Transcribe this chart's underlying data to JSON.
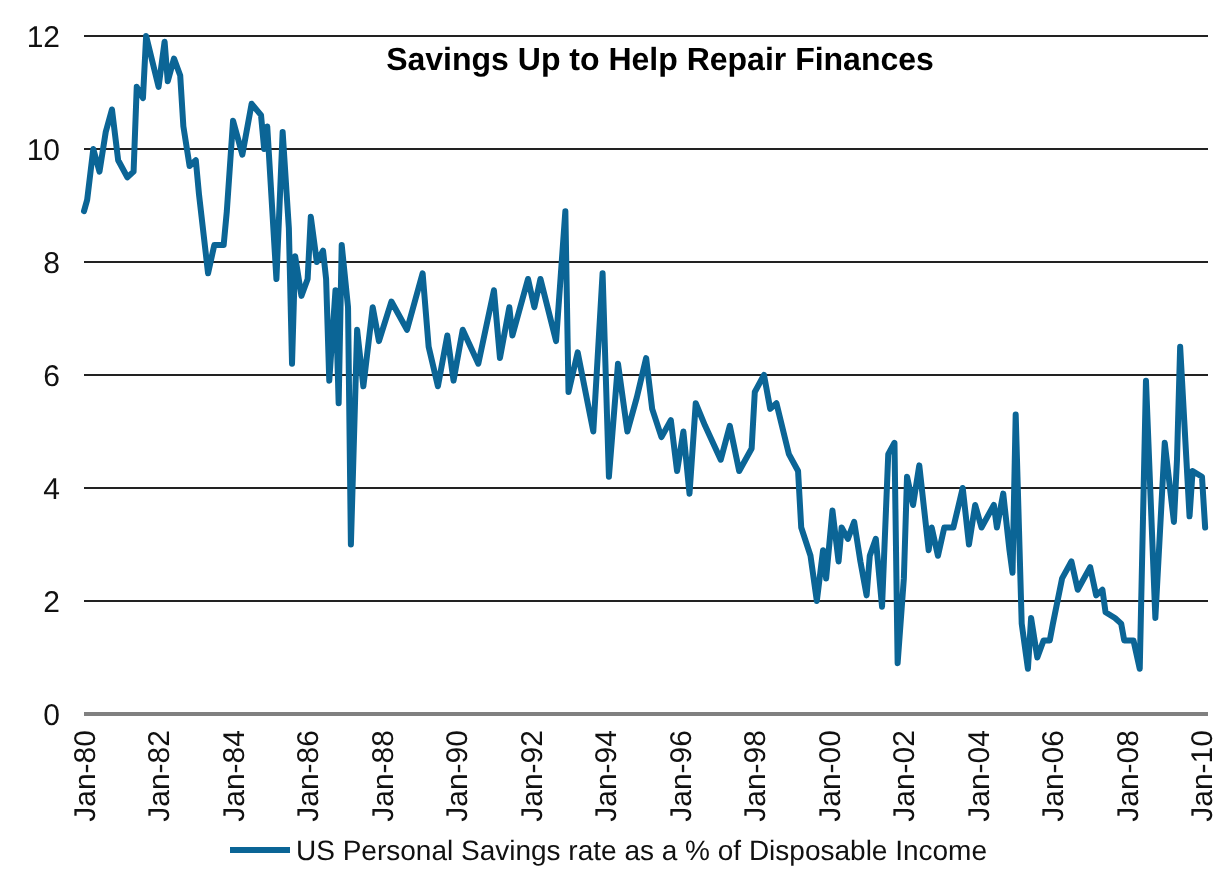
{
  "chart_data": {
    "type": "line",
    "title": "Savings Up to Help Repair Finances",
    "x": [
      "1980-01",
      "1980-02",
      "1980-04",
      "1980-06",
      "1980-08",
      "1980-10",
      "1980-12",
      "1981-03",
      "1981-05",
      "1981-06",
      "1981-08",
      "1981-09",
      "1982-01",
      "1982-03",
      "1982-04",
      "1982-06",
      "1982-08",
      "1982-09",
      "1982-11",
      "1983-01",
      "1983-02",
      "1983-05",
      "1983-07",
      "1983-10",
      "1983-11",
      "1984-01",
      "1984-04",
      "1984-07",
      "1984-10",
      "1984-11",
      "1984-12",
      "1985-03",
      "1985-05",
      "1985-07",
      "1985-08",
      "1985-09",
      "1985-11",
      "1986-01",
      "1986-02",
      "1986-04",
      "1986-06",
      "1986-07",
      "1986-08",
      "1986-10",
      "1986-11",
      "1986-12",
      "1987-02",
      "1987-03",
      "1987-05",
      "1987-07",
      "1987-10",
      "1987-12",
      "1988-04",
      "1988-09",
      "1989-02",
      "1989-04",
      "1989-07",
      "1989-10",
      "1989-12",
      "1990-03",
      "1990-08",
      "1991-01",
      "1991-03",
      "1991-06",
      "1991-07",
      "1991-12",
      "1992-02",
      "1992-04",
      "1992-09",
      "1992-12",
      "1993-01",
      "1993-04",
      "1993-09",
      "1993-12",
      "1994-02",
      "1994-05",
      "1994-08",
      "1994-11",
      "1995-02",
      "1995-04",
      "1995-07",
      "1995-10",
      "1995-12",
      "1996-02",
      "1996-04",
      "1996-06",
      "1996-09",
      "1997-02",
      "1997-05",
      "1997-08",
      "1997-12",
      "1998-01",
      "1998-04",
      "1998-06",
      "1998-08",
      "1998-12",
      "1999-03",
      "1999-04",
      "1999-07",
      "1999-09",
      "1999-11",
      "1999-12",
      "2000-02",
      "2000-04",
      "2000-05",
      "2000-07",
      "2000-09",
      "2000-11",
      "2001-01",
      "2001-02",
      "2001-04",
      "2001-06",
      "2001-08",
      "2001-10",
      "2001-11",
      "2002-01",
      "2002-02",
      "2002-04",
      "2002-06",
      "2002-09",
      "2002-10",
      "2002-12",
      "2003-02",
      "2003-05",
      "2003-08",
      "2003-10",
      "2003-12",
      "2004-02",
      "2004-06",
      "2004-07",
      "2004-09",
      "2004-11",
      "2004-12",
      "2005-01",
      "2005-03",
      "2005-05",
      "2005-06",
      "2005-08",
      "2005-10",
      "2005-12",
      "2006-01",
      "2006-04",
      "2006-07",
      "2006-09",
      "2007-01",
      "2007-03",
      "2007-05",
      "2007-06",
      "2007-09",
      "2007-11",
      "2007-12",
      "2008-03",
      "2008-05",
      "2008-07",
      "2008-10",
      "2009-01",
      "2009-04",
      "2009-05",
      "2009-06",
      "2009-09",
      "2009-10",
      "2010-01",
      "2010-02"
    ],
    "series": [
      {
        "name": "US Personal Savings rate as a % of Disposable Income",
        "color": "#0b6596",
        "values": [
          8.9,
          9.1,
          10.0,
          9.6,
          10.3,
          10.7,
          9.8,
          9.5,
          9.6,
          11.1,
          10.9,
          12.0,
          11.1,
          11.9,
          11.2,
          11.6,
          11.3,
          10.4,
          9.7,
          9.8,
          9.2,
          7.8,
          8.3,
          8.3,
          8.9,
          10.5,
          9.9,
          10.8,
          10.6,
          10.0,
          10.4,
          7.7,
          10.3,
          8.6,
          6.2,
          8.1,
          7.4,
          7.7,
          8.8,
          8.0,
          8.2,
          7.7,
          5.9,
          7.5,
          5.5,
          8.3,
          7.2,
          3.0,
          6.8,
          5.8,
          7.2,
          6.6,
          7.3,
          6.8,
          7.8,
          6.5,
          5.8,
          6.7,
          5.9,
          6.8,
          6.2,
          7.5,
          6.3,
          7.2,
          6.7,
          7.7,
          7.2,
          7.7,
          6.6,
          8.9,
          5.7,
          6.4,
          5.0,
          7.8,
          4.2,
          6.2,
          5.0,
          5.6,
          6.3,
          5.4,
          4.9,
          5.2,
          4.3,
          5.0,
          3.9,
          5.5,
          5.1,
          4.5,
          5.1,
          4.3,
          4.7,
          5.7,
          6.0,
          5.4,
          5.5,
          4.6,
          4.3,
          3.3,
          2.8,
          2.0,
          2.9,
          2.4,
          3.6,
          2.7,
          3.3,
          3.1,
          3.4,
          2.7,
          2.1,
          2.8,
          3.1,
          1.9,
          4.6,
          4.8,
          0.9,
          2.4,
          4.2,
          3.7,
          4.4,
          2.9,
          3.3,
          2.8,
          3.3,
          3.3,
          4.0,
          3.0,
          3.7,
          3.3,
          3.7,
          3.3,
          3.9,
          2.9,
          2.5,
          5.3,
          1.6,
          0.8,
          1.7,
          1.0,
          1.3,
          1.3,
          1.6,
          2.4,
          2.7,
          2.2,
          2.6,
          2.1,
          2.2,
          1.8,
          1.7,
          1.6,
          1.3,
          1.3,
          0.8,
          5.9,
          1.7,
          4.8,
          3.4,
          4.5,
          6.5,
          3.5,
          4.3,
          4.2,
          3.3
        ]
      }
    ],
    "xlim": [
      "1980-01",
      "2010-03"
    ],
    "xticks": [
      {
        "value": "1980-01",
        "label": "Jan-80"
      },
      {
        "value": "1982-01",
        "label": "Jan-82"
      },
      {
        "value": "1984-01",
        "label": "Jan-84"
      },
      {
        "value": "1986-01",
        "label": "Jan-86"
      },
      {
        "value": "1988-01",
        "label": "Jan-88"
      },
      {
        "value": "1990-01",
        "label": "Jan-90"
      },
      {
        "value": "1992-01",
        "label": "Jan-92"
      },
      {
        "value": "1994-01",
        "label": "Jan-94"
      },
      {
        "value": "1996-01",
        "label": "Jan-96"
      },
      {
        "value": "1998-01",
        "label": "Jan-98"
      },
      {
        "value": "2000-01",
        "label": "Jan-00"
      },
      {
        "value": "2002-01",
        "label": "Jan-02"
      },
      {
        "value": "2004-01",
        "label": "Jan-04"
      },
      {
        "value": "2006-01",
        "label": "Jan-06"
      },
      {
        "value": "2008-01",
        "label": "Jan-08"
      },
      {
        "value": "2010-01",
        "label": "Jan-10"
      }
    ],
    "ylim": [
      0,
      12
    ],
    "yticks": [
      0,
      2,
      4,
      6,
      8,
      10,
      12
    ],
    "grid": "y",
    "legend": "bottom",
    "marker": "none",
    "line_style": "solid"
  }
}
